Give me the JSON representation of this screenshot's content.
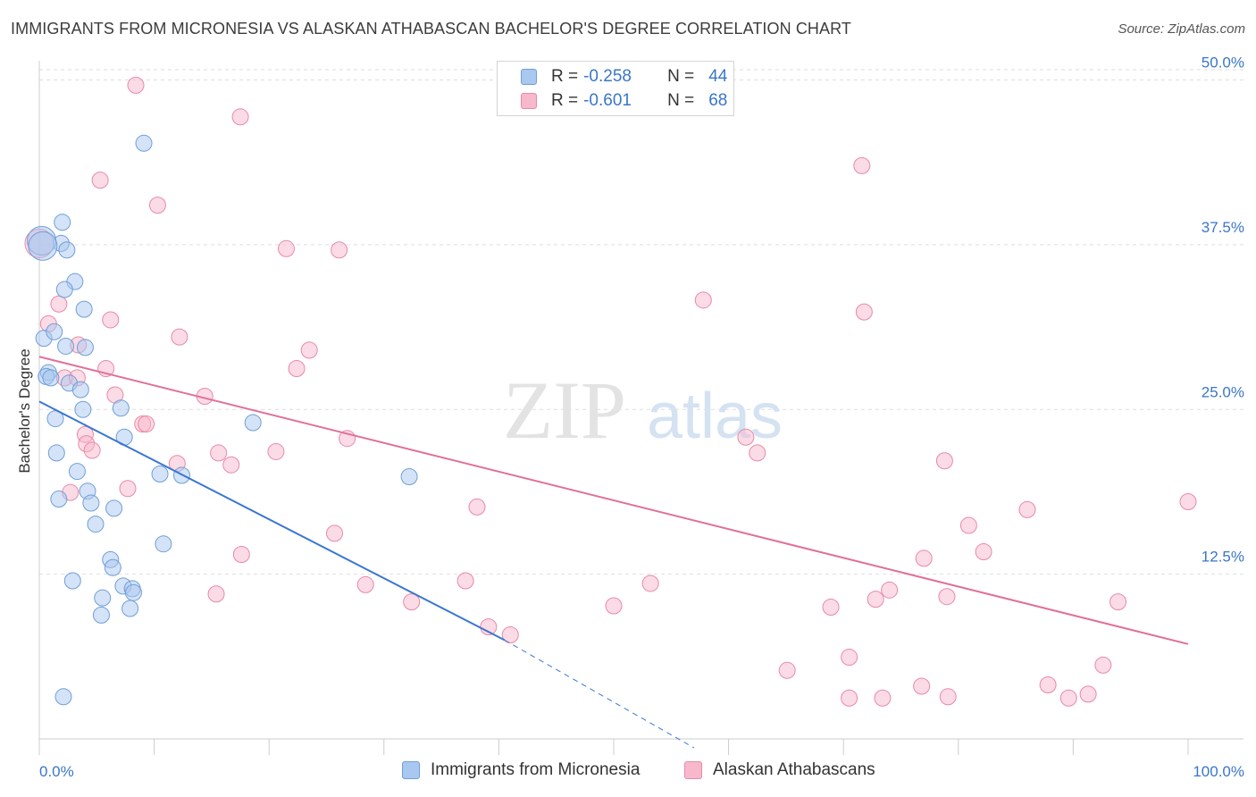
{
  "header": {
    "title": "IMMIGRANTS FROM MICRONESIA VS ALASKAN ATHABASCAN BACHELOR'S DEGREE CORRELATION CHART",
    "source": "Source: ZipAtlas.com"
  },
  "watermark": {
    "zip": "ZIP",
    "atlas": "atlas"
  },
  "legend": {
    "rows": [
      {
        "r_label": "R =",
        "r_value": "-0.258",
        "n_label": "N =",
        "n_value": "44",
        "color": "#a9c8f0",
        "border": "#6f9fd8"
      },
      {
        "r_label": "R =",
        "r_value": "-0.601",
        "n_label": "N =",
        "n_value": "68",
        "color": "#f7b8cb",
        "border": "#e88aa6"
      }
    ]
  },
  "chart_data": {
    "type": "scatter",
    "title": "IMMIGRANTS FROM MICRONESIA VS ALASKAN ATHABASCAN BACHELOR'S DEGREE CORRELATION CHART",
    "xlabel": "",
    "ylabel": "Bachelor's Degree",
    "xlim": [
      0,
      100
    ],
    "ylim": [
      0,
      52
    ],
    "x_tick_labels": [
      "0.0%",
      "100.0%"
    ],
    "y_ticks": [
      12.5,
      25.0,
      37.5,
      50.0
    ],
    "y_tick_labels": [
      "12.5%",
      "25.0%",
      "37.5%",
      "50.0%"
    ],
    "grid": "horizontal dashed",
    "legend_position": "top-center",
    "series": [
      {
        "name": "Immigrants from Micronesia",
        "color": "#a9c8f0",
        "stroke": "#6f9fd8",
        "line_color": "#3a76d2",
        "trend": {
          "x0": 0,
          "y0": 25.6,
          "x1": 40.5,
          "y1": 7.5,
          "dash_to_x": 57,
          "dash_to_y": 0
        },
        "points": [
          [
            9.1,
            45.2
          ],
          [
            2.0,
            39.2
          ],
          [
            1.9,
            37.6
          ],
          [
            2.4,
            37.1
          ],
          [
            0.2,
            37.8
          ],
          [
            3.1,
            34.7
          ],
          [
            2.2,
            34.1
          ],
          [
            3.9,
            32.6
          ],
          [
            0.4,
            30.4
          ],
          [
            1.3,
            30.9
          ],
          [
            2.3,
            29.8
          ],
          [
            4.0,
            29.7
          ],
          [
            0.8,
            27.8
          ],
          [
            0.6,
            27.5
          ],
          [
            1.0,
            27.4
          ],
          [
            2.6,
            27.0
          ],
          [
            3.6,
            26.5
          ],
          [
            7.1,
            25.1
          ],
          [
            3.8,
            25.0
          ],
          [
            1.4,
            24.3
          ],
          [
            18.6,
            24.0
          ],
          [
            7.4,
            22.9
          ],
          [
            1.5,
            21.7
          ],
          [
            10.5,
            20.1
          ],
          [
            12.4,
            20.0
          ],
          [
            32.2,
            19.9
          ],
          [
            3.3,
            20.3
          ],
          [
            4.2,
            18.8
          ],
          [
            1.7,
            18.2
          ],
          [
            4.5,
            17.9
          ],
          [
            6.5,
            17.5
          ],
          [
            4.9,
            16.3
          ],
          [
            10.8,
            14.8
          ],
          [
            6.2,
            13.6
          ],
          [
            6.4,
            13.0
          ],
          [
            2.9,
            12.0
          ],
          [
            7.3,
            11.6
          ],
          [
            8.1,
            11.4
          ],
          [
            8.2,
            11.1
          ],
          [
            5.5,
            10.7
          ],
          [
            7.9,
            9.9
          ],
          [
            5.4,
            9.4
          ],
          [
            2.1,
            3.2
          ],
          [
            0.3,
            37.4
          ]
        ]
      },
      {
        "name": "Alaskan Athabascans",
        "color": "#f7b8cb",
        "stroke": "#e88aa6",
        "line_color": "#e07098",
        "trend": {
          "x0": 0,
          "y0": 29.0,
          "x1": 100,
          "y1": 7.2
        },
        "points": [
          [
            8.4,
            49.6
          ],
          [
            17.5,
            47.2
          ],
          [
            5.3,
            42.4
          ],
          [
            10.3,
            40.5
          ],
          [
            71.6,
            43.5
          ],
          [
            21.5,
            37.2
          ],
          [
            26.1,
            37.1
          ],
          [
            57.8,
            33.3
          ],
          [
            71.8,
            32.4
          ],
          [
            1.7,
            33.0
          ],
          [
            6.2,
            31.8
          ],
          [
            0.8,
            31.5
          ],
          [
            12.2,
            30.5
          ],
          [
            3.4,
            29.9
          ],
          [
            23.5,
            29.5
          ],
          [
            22.4,
            28.1
          ],
          [
            5.8,
            28.1
          ],
          [
            2.2,
            27.4
          ],
          [
            3.3,
            27.4
          ],
          [
            6.6,
            26.1
          ],
          [
            14.4,
            26.0
          ],
          [
            9.0,
            23.9
          ],
          [
            9.3,
            23.9
          ],
          [
            4.0,
            23.1
          ],
          [
            26.8,
            22.8
          ],
          [
            4.1,
            22.4
          ],
          [
            4.6,
            21.9
          ],
          [
            15.6,
            21.7
          ],
          [
            20.6,
            21.8
          ],
          [
            61.5,
            22.9
          ],
          [
            62.5,
            21.7
          ],
          [
            78.8,
            21.1
          ],
          [
            12.0,
            20.9
          ],
          [
            16.7,
            20.8
          ],
          [
            7.7,
            19.0
          ],
          [
            2.7,
            18.7
          ],
          [
            38.1,
            17.6
          ],
          [
            86.0,
            17.4
          ],
          [
            100.0,
            18.0
          ],
          [
            80.9,
            16.2
          ],
          [
            25.7,
            15.6
          ],
          [
            17.6,
            14.0
          ],
          [
            82.2,
            14.2
          ],
          [
            77.0,
            13.7
          ],
          [
            37.1,
            12.0
          ],
          [
            53.2,
            11.8
          ],
          [
            28.4,
            11.7
          ],
          [
            74.0,
            11.3
          ],
          [
            15.4,
            11.0
          ],
          [
            79.0,
            10.8
          ],
          [
            72.8,
            10.6
          ],
          [
            93.9,
            10.4
          ],
          [
            32.4,
            10.4
          ],
          [
            50.0,
            10.1
          ],
          [
            68.9,
            10.0
          ],
          [
            39.1,
            8.5
          ],
          [
            41.0,
            7.9
          ],
          [
            70.5,
            6.2
          ],
          [
            65.1,
            5.2
          ],
          [
            92.6,
            5.6
          ],
          [
            76.8,
            4.0
          ],
          [
            87.8,
            4.1
          ],
          [
            73.4,
            3.1
          ],
          [
            70.5,
            3.1
          ],
          [
            79.1,
            3.2
          ],
          [
            89.6,
            3.1
          ],
          [
            91.3,
            3.4
          ],
          [
            0.0,
            37.6
          ]
        ]
      }
    ]
  },
  "bottom_legend": [
    {
      "label": "Immigrants from Micronesia",
      "color": "#a9c8f0",
      "border": "#6f9fd8"
    },
    {
      "label": "Alaskan Athabascans",
      "color": "#f7b8cb",
      "border": "#e88aa6"
    }
  ]
}
